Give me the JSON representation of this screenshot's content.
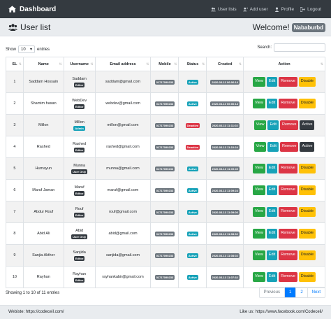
{
  "navbar": {
    "brand": "Dashboard",
    "links": [
      {
        "label": "User lists",
        "icon": "users-icon"
      },
      {
        "label": "Add user",
        "icon": "add-user-icon"
      },
      {
        "label": "Profile",
        "icon": "user-icon"
      },
      {
        "label": "Logout",
        "icon": "logout-icon"
      }
    ]
  },
  "header": {
    "title": "User list",
    "welcome": "Welcome!",
    "username": "Nababurbd"
  },
  "controls": {
    "show_label": "Show",
    "entries_value": "10",
    "entries_label": "entries",
    "search_label": "Search:"
  },
  "table": {
    "headers": [
      "SL",
      "Name",
      "Username",
      "Email address",
      "Mobile",
      "Status",
      "Created",
      "Action"
    ],
    "rows": [
      {
        "sl": "1",
        "name": "Saddam Hossain",
        "username": "Saddam",
        "role": "Editor",
        "email": "saddam@gmail.com",
        "mobile": "01717090233",
        "status": "Active",
        "created": "2020-03-13 06:06:14",
        "toggle": "Disable"
      },
      {
        "sl": "2",
        "name": "Shamim hasan",
        "username": "WebDev",
        "role": "Editor",
        "email": "webdev@gmail.com",
        "mobile": "01717090233",
        "status": "Active",
        "created": "2020-03-13 06:06:14",
        "toggle": "Disable"
      },
      {
        "sl": "3",
        "name": "Millon",
        "username": "Millon",
        "role": "Admin",
        "email": "millon@gmail.com",
        "mobile": "01717090233",
        "status": "Deactive",
        "created": "2020-03-13 11:11:02",
        "toggle": "Active"
      },
      {
        "sl": "4",
        "name": "Rashed",
        "username": "Rashed",
        "role": "Editor",
        "email": "rashed@gmail.com",
        "mobile": "01717090233",
        "status": "Deactive",
        "created": "2020-03-13 11:10:24",
        "toggle": "Active"
      },
      {
        "sl": "5",
        "name": "Humayun",
        "username": "Munna",
        "role": "User Only",
        "email": "munna@gmail.com",
        "mobile": "01717090233",
        "status": "Active",
        "created": "2020-03-13 11:09:49",
        "toggle": "Disable"
      },
      {
        "sl": "6",
        "name": "Maruf Jaman",
        "username": "Maruf",
        "role": "Editor",
        "email": "maruf@gmail.com",
        "mobile": "01717090233",
        "status": "Active",
        "created": "2020-03-13 11:09:24",
        "toggle": "Disable"
      },
      {
        "sl": "7",
        "name": "Abdur Rouf",
        "username": "Rouf",
        "role": "Editor",
        "email": "rouf@gmail.com",
        "mobile": "01717090233",
        "status": "Active",
        "created": "2020-03-13 11:09:00",
        "toggle": "Disable"
      },
      {
        "sl": "8",
        "name": "Abid Ali",
        "username": "Abid",
        "role": "User Only",
        "email": "abid@gmail.com",
        "mobile": "01717090233",
        "status": "Active",
        "created": "2020-03-13 11:08:32",
        "toggle": "Disable"
      },
      {
        "sl": "9",
        "name": "Sanjia Akther",
        "username": "Sanjida",
        "role": "Editor",
        "email": "sanjida@gmail.com",
        "mobile": "01717090233",
        "status": "Active",
        "created": "2020-03-13 11:08:02",
        "toggle": "Disable"
      },
      {
        "sl": "10",
        "name": "Rayhan",
        "username": "Rayhan",
        "role": "Editor",
        "email": "rayhankabir@gmail.com",
        "mobile": "01717090233",
        "status": "Active",
        "created": "2020-03-13 11:07:32",
        "toggle": "Disable"
      }
    ],
    "action_labels": {
      "view": "View",
      "edit": "Edit",
      "remove": "Remove"
    }
  },
  "footer_info": "Showing 1 to 10 of 11 entries",
  "pagination": {
    "previous": "Previous",
    "pages": [
      "1",
      "2"
    ],
    "next": "Next",
    "current": "1"
  },
  "footer": {
    "website": "Webiste: https://codeceil.com/",
    "like": "Like us: https://www.facebook.com/Codeceil/"
  },
  "colors": {
    "navbar": "#343a40",
    "view": "#28a745",
    "edit": "#17a2b8",
    "remove": "#dc3545",
    "disable": "#ffc107",
    "active_btn": "#343a40",
    "status_active": "#17a2b8",
    "status_deactive": "#dc3545"
  }
}
